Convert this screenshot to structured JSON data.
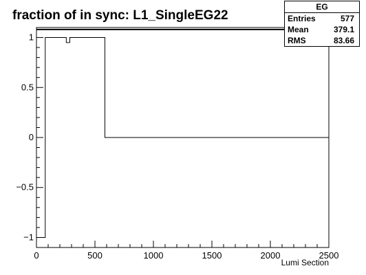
{
  "chart_data": {
    "type": "step",
    "title": "fraction of in sync: L1_SingleEG22",
    "xlabel": "Lumi Section",
    "ylabel": "",
    "xlim": [
      0,
      2500
    ],
    "ylim": [
      -1.1,
      1.1
    ],
    "x_ticks": [
      {
        "value": 0,
        "label": "0"
      },
      {
        "value": 500,
        "label": "500"
      },
      {
        "value": 1000,
        "label": "1000"
      },
      {
        "value": 1500,
        "label": "1500"
      },
      {
        "value": 2000,
        "label": "2000"
      },
      {
        "value": 2500,
        "label": "2500"
      }
    ],
    "y_ticks": [
      {
        "value": -1,
        "label": "−1"
      },
      {
        "value": -0.5,
        "label": "−0.5"
      },
      {
        "value": 0,
        "label": "0"
      },
      {
        "value": 0.5,
        "label": "0.5"
      },
      {
        "value": 1,
        "label": "1"
      }
    ],
    "steps": [
      {
        "x0": 0,
        "x1": 75,
        "y": -1
      },
      {
        "x0": 75,
        "x1": 255,
        "y": 1
      },
      {
        "x0": 255,
        "x1": 285,
        "y": 0.95
      },
      {
        "x0": 285,
        "x1": 585,
        "y": 1
      },
      {
        "x0": 585,
        "x1": 2500,
        "y": 0
      }
    ],
    "overflow_level": 1.08,
    "stats": {
      "name": "EG",
      "rows": [
        {
          "label": "Entries",
          "value": "577"
        },
        {
          "label": "Mean",
          "value": "379.1"
        },
        {
          "label": "RMS",
          "value": "83.66"
        }
      ]
    }
  }
}
